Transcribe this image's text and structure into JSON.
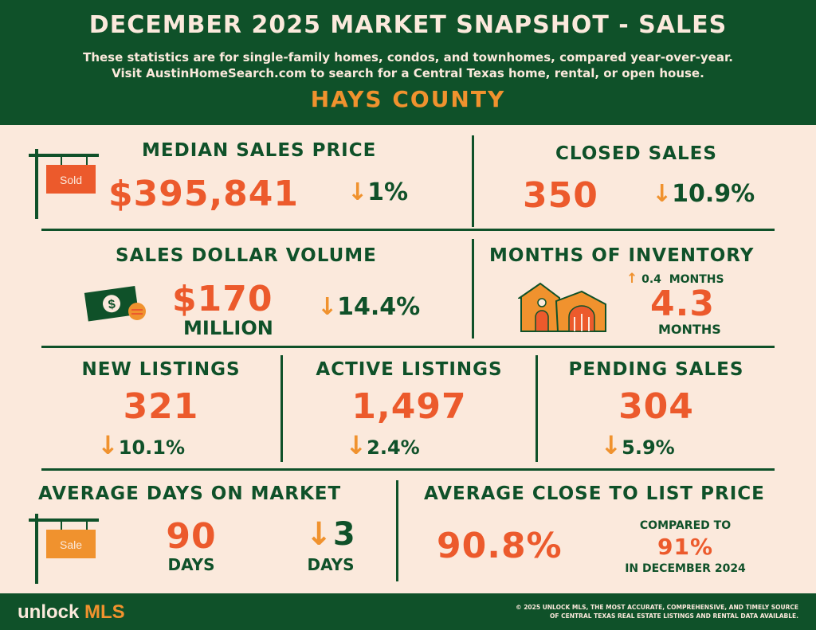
{
  "header": {
    "title": "DECEMBER 2025 MARKET SNAPSHOT - SALES",
    "subtitle_line1": "These statistics are for single-family homes, condos, and townhomes, compared year-over-year.",
    "subtitle_line2": "Visit AustinHomeSearch.com to search for a Central Texas home, rental, or open house.",
    "county": "HAYS COUNTY"
  },
  "median_sales_price": {
    "label": "MEDIAN SALES PRICE",
    "value": "$395,841",
    "change": "1%",
    "sign_text": "Sold"
  },
  "closed_sales": {
    "label": "CLOSED SALES",
    "value": "350",
    "change": "10.9%"
  },
  "sales_dollar_volume": {
    "label": "SALES DOLLAR VOLUME",
    "value": "$170",
    "unit": "MILLION",
    "change": "14.4%"
  },
  "months_of_inventory": {
    "label": "MONTHS OF INVENTORY",
    "change": "0.4",
    "change_unit": "MONTHS",
    "value": "4.3",
    "unit": "MONTHS"
  },
  "new_listings": {
    "label": "NEW LISTINGS",
    "value": "321",
    "change": "10.1%"
  },
  "active_listings": {
    "label": "ACTIVE LISTINGS",
    "value": "1,497",
    "change": "2.4%"
  },
  "pending_sales": {
    "label": "PENDING SALES",
    "value": "304",
    "change": "5.9%"
  },
  "avg_days_on_market": {
    "label": "AVERAGE DAYS ON MARKET",
    "value": "90",
    "unit": "DAYS",
    "change": "3",
    "change_unit": "DAYS",
    "sign_text": "Sale"
  },
  "avg_close_to_list": {
    "label": "AVERAGE CLOSE TO LIST PRICE",
    "value": "90.8%",
    "compare_label": "COMPARED TO",
    "compare_value": "91%",
    "compare_period": "IN DECEMBER 2024"
  },
  "footer": {
    "logo_word": "unlock",
    "logo_accent": "MLS",
    "copyright_line1": "© 2025 UNLOCK MLS, THE MOST ACCURATE, COMPREHENSIVE, AND TIMELY SOURCE",
    "copyright_line2": "OF CENTRAL TEXAS REAL ESTATE LISTINGS AND RENTAL DATA AVAILABLE."
  },
  "colors": {
    "dark_green": "#0f5129",
    "orange": "#f0922e",
    "red_orange": "#ec5a2c",
    "cream": "#fbe9dc"
  },
  "icons": [
    "sold-sign-icon",
    "down-arrow-icon",
    "up-arrow-icon",
    "money-bill-icon",
    "house-icon",
    "sale-sign-icon"
  ]
}
